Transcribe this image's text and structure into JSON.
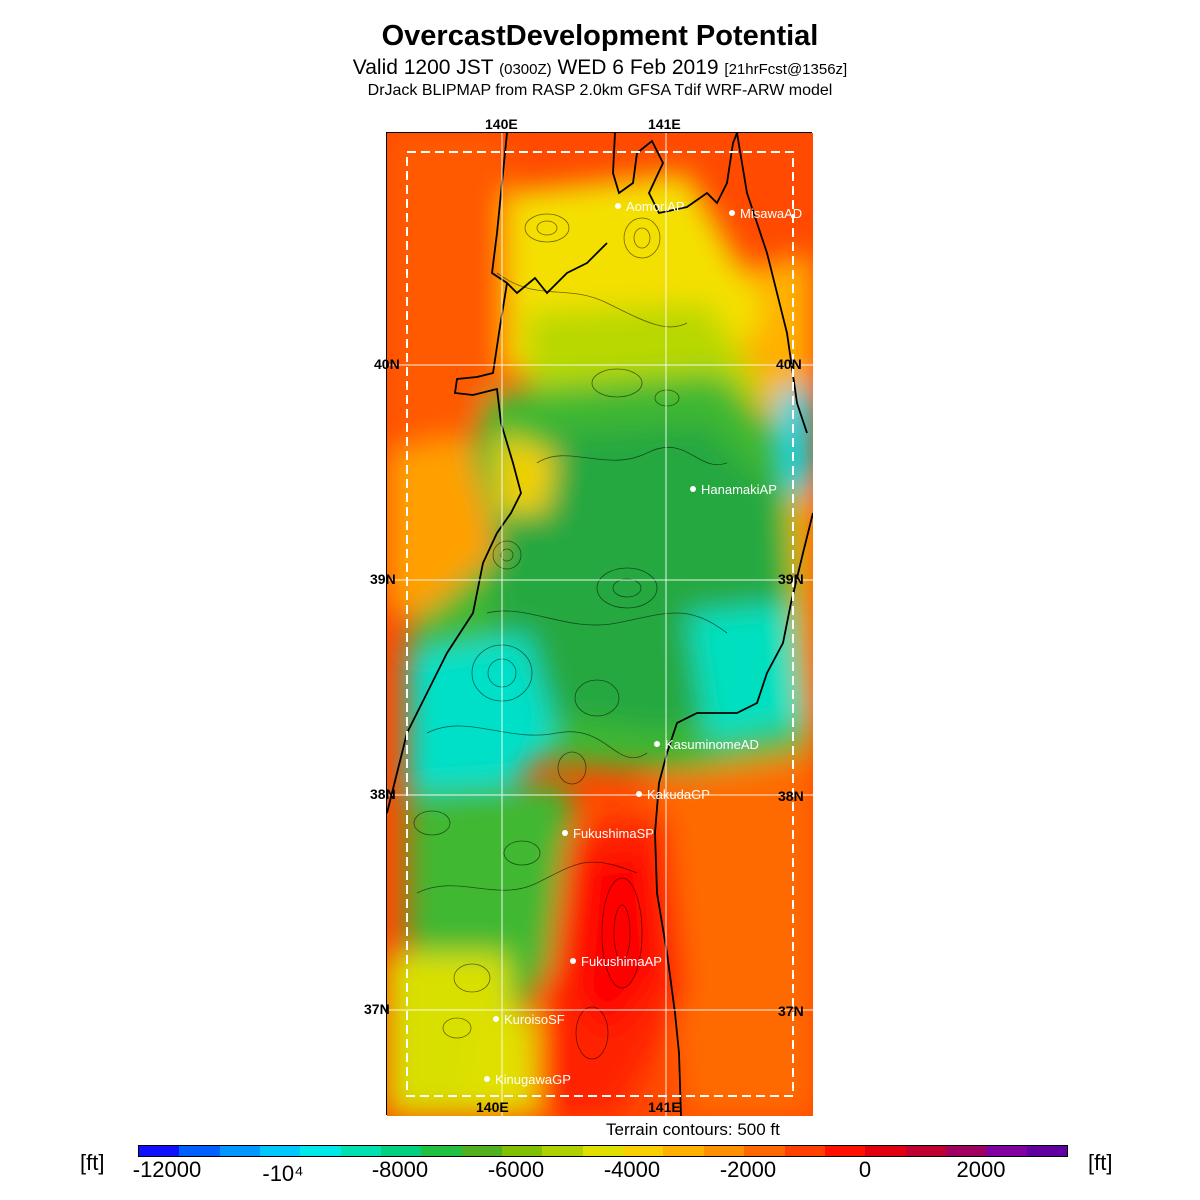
{
  "header": {
    "title": "OvercastDevelopment Potential",
    "valid_main": "Valid 1200 JST",
    "valid_zone": "(0300Z)",
    "valid_date": "WED 6 Feb 2019",
    "forecast": "[21hrFcst@1356z]",
    "model": "DrJack BLIPMAP from RASP 2.0km GFSA Tdif WRF-ARW model"
  },
  "map": {
    "lon_labels": [
      "140E",
      "141E"
    ],
    "lat_labels": [
      "40N",
      "39N",
      "38N",
      "37N"
    ],
    "stations": [
      {
        "name": "AomoriAP"
      },
      {
        "name": "MisawaAD"
      },
      {
        "name": "HanamakiAP"
      },
      {
        "name": "KasuminomeAD"
      },
      {
        "name": "KakudaGP"
      },
      {
        "name": "FukushimaSP"
      },
      {
        "name": "FukushimaAP"
      },
      {
        "name": "KuroisoSF"
      },
      {
        "name": "KinugawaGP"
      }
    ]
  },
  "legend": {
    "terrain_note": "Terrain contours: 500 ft",
    "unit": "[ft]",
    "tick_labels": [
      "-12000",
      "-10⁴",
      "-8000",
      "-6000",
      "-4000",
      "-2000",
      "0",
      "2000"
    ],
    "colors": [
      "#1010ff",
      "#0060ff",
      "#0098ff",
      "#00c8ff",
      "#00e8e8",
      "#00e0b0",
      "#00d080",
      "#20c040",
      "#50b020",
      "#80c000",
      "#b0d000",
      "#e0e000",
      "#f8d000",
      "#ffb000",
      "#ff9000",
      "#ff6800",
      "#ff4000",
      "#ff1000",
      "#e00010",
      "#c00030",
      "#a00060",
      "#8000a0",
      "#6000a0"
    ]
  }
}
